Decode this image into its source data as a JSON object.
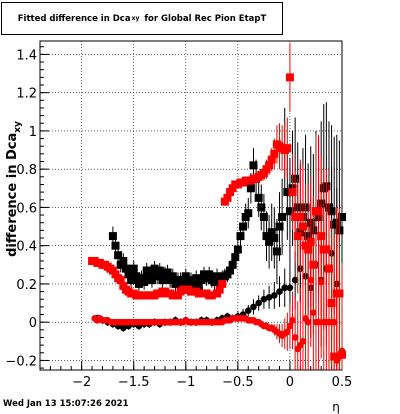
{
  "title": {
    "prefix": "Fitted difference in Dca",
    "subscript": "xy",
    "suffix": "for Global Rec Pion EtapT"
  },
  "timestamp": "Wed Jan 13 15:07:26 2021",
  "chart_data": {
    "type": "scatter",
    "ylabel": "difference in Dca",
    "ylabel_sub": "xy",
    "xlabel": "η",
    "xlim": [
      -2.4,
      0.5
    ],
    "ylim": [
      -0.25,
      1.47
    ],
    "x_ticks": [
      -2,
      -1.5,
      -1,
      -0.5,
      0,
      0.5
    ],
    "x_tick_labels": [
      "−2",
      "−1.5",
      "−1",
      "−0.5",
      "0",
      "0.5"
    ],
    "y_ticks": [
      -0.2,
      0,
      0.2,
      0.4,
      0.6,
      0.8,
      1,
      1.2,
      1.4
    ],
    "y_tick_labels": [
      "−0.2",
      "0",
      "0.2",
      "0.4",
      "0.6",
      "0.8",
      "1",
      "1.2",
      "1.4"
    ],
    "grid": true,
    "series": [
      {
        "color": "#000000",
        "marker": "square",
        "x": [
          -1.7,
          -1.675,
          -1.65,
          -1.625,
          -1.6,
          -1.575,
          -1.55,
          -1.525,
          -1.5,
          -1.475,
          -1.45,
          -1.425,
          -1.4,
          -1.375,
          -1.35,
          -1.325,
          -1.3,
          -1.275,
          -1.25,
          -1.225,
          -1.2,
          -1.175,
          -1.15,
          -1.125,
          -1.1,
          -1.075,
          -1.05,
          -1.025,
          -1.0,
          -0.975,
          -0.95,
          -0.925,
          -0.9,
          -0.875,
          -0.85,
          -0.825,
          -0.8,
          -0.775,
          -0.75,
          -0.725,
          -0.7,
          -0.675,
          -0.65,
          -0.625,
          -0.6,
          -0.575,
          -0.55,
          -0.525,
          -0.5,
          -0.475,
          -0.45,
          -0.425,
          -0.4,
          -0.375,
          -0.35,
          -0.325,
          -0.3,
          -0.275,
          -0.25,
          -0.225,
          -0.2,
          -0.175,
          -0.15,
          -0.125,
          -0.1,
          -0.075,
          -0.05,
          -0.025,
          0.0,
          0.025,
          0.05,
          0.075,
          0.1,
          0.125,
          0.15,
          0.175,
          0.2,
          0.225,
          0.25,
          0.275,
          0.3,
          0.325,
          0.35,
          0.375,
          0.4,
          0.425,
          0.45,
          0.475,
          0.5
        ],
        "y": [
          0.45,
          0.4,
          0.35,
          0.3,
          0.32,
          0.28,
          0.25,
          0.22,
          0.28,
          0.24,
          0.2,
          0.23,
          0.21,
          0.27,
          0.25,
          0.22,
          0.28,
          0.24,
          0.27,
          0.22,
          0.25,
          0.26,
          0.22,
          0.24,
          0.2,
          0.22,
          0.22,
          0.19,
          0.24,
          0.2,
          0.22,
          0.2,
          0.23,
          0.19,
          0.22,
          0.25,
          0.23,
          0.25,
          0.22,
          0.21,
          0.24,
          0.22,
          0.23,
          0.24,
          0.25,
          0.27,
          0.3,
          0.34,
          0.38,
          0.45,
          0.5,
          0.55,
          0.57,
          0.7,
          0.82,
          0.75,
          0.65,
          0.6,
          0.55,
          0.45,
          0.42,
          0.47,
          0.44,
          0.37,
          0.5,
          0.55,
          0.9,
          0.68,
          0.58,
          0.7,
          0.75,
          0.6,
          0.47,
          0.55,
          0.6,
          0.45,
          0.52,
          0.48,
          0.58,
          0.55,
          0.62,
          0.7,
          0.71,
          0.6,
          0.58,
          0.51,
          0.52,
          0.48,
          0.55
        ],
        "err": [
          0.05,
          0.05,
          0.05,
          0.04,
          0.04,
          0.04,
          0.04,
          0.04,
          0.04,
          0.04,
          0.04,
          0.04,
          0.04,
          0.04,
          0.04,
          0.04,
          0.04,
          0.04,
          0.04,
          0.04,
          0.04,
          0.04,
          0.04,
          0.04,
          0.04,
          0.04,
          0.04,
          0.04,
          0.04,
          0.04,
          0.04,
          0.04,
          0.04,
          0.04,
          0.04,
          0.04,
          0.04,
          0.04,
          0.04,
          0.04,
          0.04,
          0.04,
          0.04,
          0.04,
          0.04,
          0.04,
          0.05,
          0.05,
          0.06,
          0.06,
          0.07,
          0.07,
          0.08,
          0.08,
          0.09,
          0.1,
          0.1,
          0.12,
          0.12,
          0.13,
          0.14,
          0.15,
          0.16,
          0.17,
          0.18,
          0.2,
          0.22,
          0.25,
          0.28,
          0.3,
          0.32,
          0.34,
          0.36,
          0.36,
          0.38,
          0.38,
          0.4,
          0.4,
          0.42,
          0.42,
          0.43,
          0.44,
          0.44,
          0.45,
          0.45,
          0.46,
          0.46,
          0.47,
          0.48
        ]
      },
      {
        "color": "#000000",
        "marker": "circle",
        "x": [
          -1.85,
          -1.8,
          -1.75,
          -1.7,
          -1.65,
          -1.6,
          -1.55,
          -1.5,
          -1.45,
          -1.4,
          -1.35,
          -1.3,
          -1.25,
          -1.2,
          -1.15,
          -1.1,
          -1.05,
          -1.0,
          -0.95,
          -0.9,
          -0.85,
          -0.8,
          -0.75,
          -0.7,
          -0.65,
          -0.6,
          -0.55,
          -0.5,
          -0.45,
          -0.4,
          -0.35,
          -0.3,
          -0.25,
          -0.2,
          -0.15,
          -0.1,
          -0.05,
          0.0,
          0.05,
          0.1,
          0.15,
          0.2,
          0.25,
          0.3,
          0.35,
          0.4,
          0.45
        ],
        "y": [
          0.02,
          0.01,
          0.0,
          -0.01,
          -0.02,
          -0.03,
          -0.02,
          -0.01,
          -0.02,
          -0.01,
          -0.01,
          0.0,
          -0.01,
          0.0,
          0.0,
          0.01,
          0.0,
          0.01,
          0.0,
          0.0,
          0.01,
          0.01,
          0.0,
          0.01,
          0.02,
          0.03,
          0.02,
          0.03,
          0.04,
          0.06,
          0.08,
          0.1,
          0.12,
          0.13,
          0.14,
          0.16,
          0.18,
          0.18,
          0.22,
          0.28,
          0.24,
          0.18,
          0.3,
          0.22,
          0.28,
          0.36,
          0.2
        ],
        "err": [
          0.02,
          0.02,
          0.02,
          0.02,
          0.02,
          0.02,
          0.02,
          0.02,
          0.02,
          0.02,
          0.02,
          0.02,
          0.02,
          0.02,
          0.02,
          0.02,
          0.02,
          0.02,
          0.02,
          0.02,
          0.02,
          0.02,
          0.02,
          0.02,
          0.02,
          0.02,
          0.02,
          0.03,
          0.03,
          0.03,
          0.04,
          0.04,
          0.05,
          0.06,
          0.07,
          0.08,
          0.1,
          0.12,
          0.15,
          0.18,
          0.22,
          0.26,
          0.3,
          0.35,
          0.4,
          0.45,
          0.5
        ]
      },
      {
        "color": "#ff0000",
        "marker": "square",
        "x": [
          -1.9,
          -1.875,
          -1.85,
          -1.825,
          -1.8,
          -1.775,
          -1.75,
          -1.725,
          -1.7,
          -1.675,
          -1.65,
          -1.625,
          -1.6,
          -1.575,
          -1.55,
          -1.525,
          -1.5,
          -1.475,
          -1.45,
          -1.425,
          -1.4,
          -1.375,
          -1.35,
          -1.325,
          -1.3,
          -1.275,
          -1.25,
          -1.225,
          -1.2,
          -1.175,
          -1.15,
          -1.125,
          -1.1,
          -1.075,
          -1.05,
          -1.025,
          -1.0,
          -0.975,
          -0.95,
          -0.925,
          -0.9,
          -0.875,
          -0.85,
          -0.825,
          -0.8,
          -0.775,
          -0.75,
          -0.7,
          -0.675,
          -0.65,
          -0.625,
          -0.6,
          -0.575,
          -0.55,
          -0.525,
          -0.5,
          -0.475,
          -0.45,
          -0.425,
          -0.4,
          -0.375,
          -0.35,
          -0.325,
          -0.3,
          -0.275,
          -0.25,
          -0.225,
          -0.2,
          -0.175,
          -0.15,
          -0.125,
          -0.1,
          -0.075,
          -0.05,
          -0.025,
          0.0,
          0.025,
          0.05,
          0.075,
          0.1,
          0.125,
          0.15,
          0.175,
          0.2,
          0.225,
          0.25,
          0.275,
          0.3,
          0.325,
          0.35,
          0.375,
          0.4,
          0.425,
          0.45,
          0.475,
          0.5
        ],
        "y": [
          0.32,
          0.32,
          0.31,
          0.31,
          0.3,
          0.3,
          0.29,
          0.28,
          0.27,
          0.25,
          0.23,
          0.22,
          0.19,
          0.17,
          0.16,
          0.15,
          0.15,
          0.14,
          0.14,
          0.14,
          0.14,
          0.14,
          0.14,
          0.14,
          0.14,
          0.15,
          0.15,
          0.16,
          0.16,
          0.15,
          0.15,
          0.14,
          0.14,
          0.14,
          0.16,
          0.17,
          0.17,
          0.17,
          0.16,
          0.16,
          0.16,
          0.15,
          0.15,
          0.15,
          0.15,
          0.14,
          0.14,
          0.15,
          0.17,
          0.2,
          0.63,
          0.65,
          0.68,
          0.7,
          0.72,
          0.72,
          0.73,
          0.73,
          0.74,
          0.74,
          0.74,
          0.75,
          0.75,
          0.76,
          0.77,
          0.78,
          0.8,
          0.82,
          0.85,
          0.88,
          0.93,
          0.92,
          0.91,
          0.9,
          0.91,
          1.28,
          0.68,
          0.55,
          0.45,
          0.55,
          0.5,
          0.4,
          0.38,
          0.42,
          0.3,
          0.58,
          0.58,
          0.45,
          0.38,
          0.38,
          0.28,
          0.1,
          -0.18,
          0.15,
          0.15,
          -0.17
        ],
        "err": [
          0.01,
          0.01,
          0.01,
          0.01,
          0.01,
          0.01,
          0.01,
          0.01,
          0.01,
          0.01,
          0.01,
          0.01,
          0.01,
          0.01,
          0.01,
          0.01,
          0.01,
          0.01,
          0.01,
          0.01,
          0.01,
          0.01,
          0.01,
          0.01,
          0.01,
          0.01,
          0.01,
          0.01,
          0.01,
          0.01,
          0.01,
          0.01,
          0.01,
          0.01,
          0.01,
          0.01,
          0.01,
          0.01,
          0.01,
          0.01,
          0.01,
          0.01,
          0.01,
          0.01,
          0.01,
          0.01,
          0.01,
          0.01,
          0.01,
          0.01,
          0.02,
          0.02,
          0.02,
          0.02,
          0.02,
          0.02,
          0.02,
          0.02,
          0.02,
          0.02,
          0.02,
          0.02,
          0.02,
          0.02,
          0.03,
          0.04,
          0.05,
          0.05,
          0.06,
          0.08,
          0.1,
          0.12,
          0.12,
          0.14,
          0.16,
          0.18,
          0.2,
          0.24,
          0.3,
          0.3,
          0.32,
          0.32,
          0.34,
          0.34,
          0.36,
          0.4,
          0.4,
          0.42,
          0.42,
          0.42,
          0.44,
          0.44,
          0.44,
          0.45,
          0.45,
          0.45
        ]
      },
      {
        "color": "#ff0000",
        "marker": "circle",
        "x": [
          -1.875,
          -1.85,
          -1.825,
          -1.8,
          -1.775,
          -1.75,
          -1.725,
          -1.7,
          -1.675,
          -1.65,
          -1.625,
          -1.6,
          -1.575,
          -1.55,
          -1.525,
          -1.5,
          -1.475,
          -1.45,
          -1.425,
          -1.4,
          -1.375,
          -1.35,
          -1.325,
          -1.3,
          -1.275,
          -1.25,
          -1.225,
          -1.2,
          -1.175,
          -1.15,
          -1.125,
          -1.1,
          -1.075,
          -1.05,
          -1.025,
          -1.0,
          -0.975,
          -0.95,
          -0.925,
          -0.9,
          -0.875,
          -0.85,
          -0.825,
          -0.8,
          -0.775,
          -0.75,
          -0.725,
          -0.7,
          -0.675,
          -0.65,
          -0.625,
          -0.6,
          -0.575,
          -0.55,
          -0.525,
          -0.5,
          -0.475,
          -0.45,
          -0.425,
          -0.4,
          -0.375,
          -0.35,
          -0.325,
          -0.3,
          -0.275,
          -0.25,
          -0.225,
          -0.2,
          -0.175,
          -0.15,
          -0.125,
          -0.1,
          -0.075,
          -0.05,
          -0.025,
          0.0,
          0.025,
          0.05,
          0.075,
          0.1,
          0.125,
          0.15,
          0.175,
          0.2,
          0.225,
          0.25,
          0.275,
          0.3,
          0.325,
          0.35,
          0.375,
          0.4,
          0.425,
          0.45,
          0.475,
          0.5
        ],
        "y": [
          0.02,
          0.01,
          0.02,
          0.01,
          0.01,
          0.01,
          0.0,
          0.0,
          0.0,
          0.0,
          0.0,
          0.0,
          0.0,
          0.0,
          0.0,
          0.0,
          0.0,
          0.0,
          0.0,
          0.0,
          0.0,
          0.0,
          0.0,
          0.0,
          0.0,
          0.0,
          0.0,
          0.0,
          0.0,
          0.0,
          0.0,
          0.0,
          0.0,
          0.0,
          0.0,
          0.01,
          0.0,
          0.0,
          0.0,
          0.0,
          0.0,
          0.0,
          0.0,
          0.0,
          0.0,
          0.0,
          0.0,
          0.0,
          0.0,
          0.0,
          0.01,
          0.01,
          0.01,
          0.02,
          0.02,
          0.02,
          0.02,
          0.02,
          0.02,
          0.01,
          0.01,
          0.01,
          0.0,
          0.0,
          -0.01,
          -0.02,
          -0.02,
          -0.03,
          -0.03,
          -0.04,
          -0.05,
          -0.06,
          -0.07,
          -0.06,
          -0.05,
          -0.02,
          0.01,
          -0.08,
          -0.14,
          -0.12,
          -0.1,
          0.02,
          0.0,
          0.22,
          0.05,
          0.0,
          0.0,
          0.21,
          0.0,
          0.0,
          0.0,
          0.0,
          0.0,
          -0.2,
          -0.18,
          -0.15
        ],
        "err": [
          0.01,
          0.01,
          0.01,
          0.01,
          0.01,
          0.01,
          0.01,
          0.01,
          0.01,
          0.01,
          0.01,
          0.01,
          0.01,
          0.01,
          0.01,
          0.01,
          0.01,
          0.01,
          0.01,
          0.01,
          0.01,
          0.01,
          0.01,
          0.01,
          0.01,
          0.01,
          0.01,
          0.01,
          0.01,
          0.01,
          0.01,
          0.01,
          0.01,
          0.01,
          0.01,
          0.01,
          0.01,
          0.01,
          0.01,
          0.01,
          0.01,
          0.01,
          0.01,
          0.01,
          0.01,
          0.01,
          0.01,
          0.01,
          0.01,
          0.01,
          0.01,
          0.01,
          0.01,
          0.01,
          0.01,
          0.01,
          0.01,
          0.01,
          0.01,
          0.01,
          0.01,
          0.01,
          0.01,
          0.01,
          0.01,
          0.01,
          0.02,
          0.02,
          0.02,
          0.03,
          0.04,
          0.05,
          0.06,
          0.08,
          0.1,
          0.12,
          0.15,
          0.2,
          0.25,
          0.3,
          0.3,
          0.32,
          0.34,
          0.35,
          0.36,
          0.38,
          0.4,
          0.4,
          0.42,
          0.42,
          0.44,
          0.44,
          0.45,
          0.45,
          0.46,
          0.46
        ]
      }
    ]
  }
}
